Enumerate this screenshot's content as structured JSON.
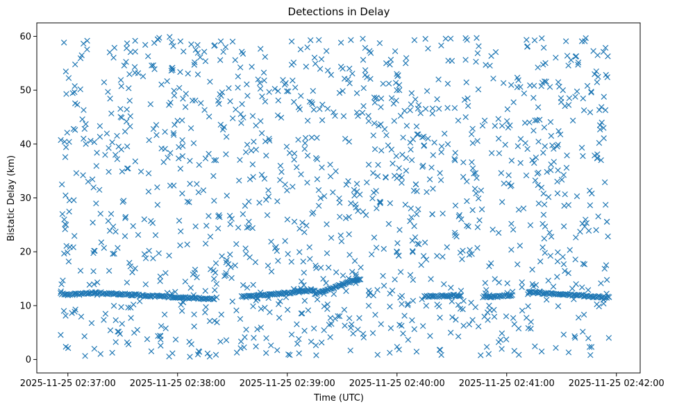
{
  "chart_data": {
    "type": "scatter",
    "title": "Detections in Delay",
    "xlabel": "Time (UTC)",
    "ylabel": "Bistatic Delay (km)",
    "marker": "x",
    "marker_color": "#1f77b4",
    "xlim_seconds": [
      -17,
      313
    ],
    "x_origin": "2025-11-25 02:37:00",
    "ylim": [
      -2.5,
      62.5
    ],
    "y_ticks": [
      0,
      10,
      20,
      30,
      40,
      50,
      60
    ],
    "x_ticks": [
      {
        "seconds": 0,
        "label": "2025-11-25 02:37:00"
      },
      {
        "seconds": 60,
        "label": "2025-11-25 02:38:00"
      },
      {
        "seconds": 120,
        "label": "2025-11-25 02:39:00"
      },
      {
        "seconds": 180,
        "label": "2025-11-25 02:40:00"
      },
      {
        "seconds": 240,
        "label": "2025-11-25 02:41:00"
      },
      {
        "seconds": 300,
        "label": "2025-11-25 02:42:00"
      }
    ],
    "data_time_range_seconds": [
      -4,
      296
    ],
    "clutter_track": [
      {
        "t": [
          -4,
          0
        ],
        "delay": [
          12.3,
          12.0
        ]
      },
      {
        "t": [
          0,
          15
        ],
        "delay": [
          12.0,
          12.4
        ]
      },
      {
        "t": [
          15,
          45
        ],
        "delay": [
          12.4,
          11.8
        ]
      },
      {
        "t": [
          45,
          80
        ],
        "delay": [
          11.8,
          11.2
        ]
      },
      {
        "t": [
          95,
          115
        ],
        "delay": [
          11.6,
          12.2
        ]
      },
      {
        "t": [
          115,
          135
        ],
        "delay": [
          12.2,
          12.9
        ]
      },
      {
        "t": [
          135,
          150
        ],
        "delay": [
          12.2,
          13.9
        ]
      },
      {
        "t": [
          150,
          160
        ],
        "delay": [
          14.0,
          15.0
        ]
      },
      {
        "t": [
          195,
          215
        ],
        "delay": [
          11.7,
          11.9
        ]
      },
      {
        "t": [
          227,
          243
        ],
        "delay": [
          11.6,
          11.9
        ]
      },
      {
        "t": [
          252,
          296
        ],
        "delay": [
          12.5,
          11.5
        ]
      }
    ],
    "clutter_points": [
      {
        "t": 98,
        "delay": 24.5
      },
      {
        "t": 99,
        "delay": 24.6
      },
      {
        "t": 101,
        "delay": 24.4
      },
      {
        "t": 108,
        "delay": 40.5
      },
      {
        "t": 110,
        "delay": 41.0
      },
      {
        "t": 254,
        "delay": 37.0
      },
      {
        "t": 255,
        "delay": 36.5
      },
      {
        "t": 256,
        "delay": 37.5
      },
      {
        "t": 291,
        "delay": 43.5
      },
      {
        "t": 292,
        "delay": 44.0
      },
      {
        "t": 293,
        "delay": 43.0
      },
      {
        "t": 294,
        "delay": 46.3
      },
      {
        "t": 290,
        "delay": 52.5
      },
      {
        "t": 289,
        "delay": 53.5
      },
      {
        "t": 26,
        "delay": 38.0
      },
      {
        "t": 27,
        "delay": 37.2
      },
      {
        "t": 80,
        "delay": 37.0
      },
      {
        "t": 81,
        "delay": 37.0
      },
      {
        "t": -3,
        "delay": 27.0
      },
      {
        "t": -2,
        "delay": 26.0
      },
      {
        "t": -1,
        "delay": 25.0
      }
    ],
    "noise_point_count": 1250,
    "noise_delay_range": [
      0.5,
      60
    ]
  }
}
